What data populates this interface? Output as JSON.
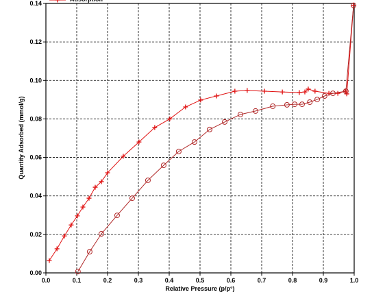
{
  "chart_data": {
    "type": "line",
    "xlabel": "Relative Pressure (p/p°)",
    "ylabel": "Quantity Adsorbed (mmol/g)",
    "xlim": [
      0,
      1
    ],
    "ylim": [
      0,
      0.14
    ],
    "xticks": [
      {
        "value": 0,
        "label": "0.0"
      },
      0.1,
      0.2,
      0.3,
      0.4,
      0.5,
      0.6,
      0.7,
      0.8,
      0.9,
      {
        "value": 1,
        "label": "1.0"
      }
    ],
    "yticks": [
      {
        "value": 0,
        "label": "0.00"
      },
      0.02,
      0.04,
      0.06,
      0.08,
      {
        "value": 0.1,
        "label": "0.10"
      },
      0.12,
      0.14
    ],
    "grid": true,
    "series": [
      {
        "name": "Adsorption",
        "color": "#e01010",
        "marker": "plus",
        "x": [
          0.011,
          0.036,
          0.06,
          0.082,
          0.102,
          0.12,
          0.14,
          0.16,
          0.18,
          0.2,
          0.251,
          0.302,
          0.353,
          0.402,
          0.453,
          0.502,
          0.553,
          0.613,
          0.653,
          0.709,
          0.767,
          0.822,
          0.84,
          0.851,
          0.873,
          0.918,
          0.947,
          0.971,
          0.976,
          0.998
        ],
        "values": [
          0.0064,
          0.0125,
          0.0192,
          0.0249,
          0.0296,
          0.0342,
          0.0388,
          0.0445,
          0.0474,
          0.052,
          0.0606,
          0.068,
          0.0755,
          0.08,
          0.0862,
          0.0898,
          0.0919,
          0.0944,
          0.0948,
          0.0944,
          0.094,
          0.0937,
          0.094,
          0.0955,
          0.0944,
          0.0933,
          0.0933,
          0.0944,
          0.093,
          0.139
        ]
      },
      {
        "color": "#b02828",
        "marker": "circle",
        "x": [
          0.998,
          0.973,
          0.931,
          0.904,
          0.88,
          0.856,
          0.831,
          0.807,
          0.782,
          0.736,
          0.68,
          0.631,
          0.58,
          0.531,
          0.482,
          0.431,
          0.382,
          0.331,
          0.28,
          0.231,
          0.18,
          0.142,
          0.104
        ],
        "values": [
          0.139,
          0.0944,
          0.0933,
          0.0919,
          0.0901,
          0.0887,
          0.0876,
          0.0876,
          0.0873,
          0.0866,
          0.0841,
          0.0823,
          0.0784,
          0.0745,
          0.068,
          0.0631,
          0.0559,
          0.0481,
          0.0388,
          0.0299,
          0.0203,
          0.011,
          0.0007
        ]
      }
    ]
  }
}
